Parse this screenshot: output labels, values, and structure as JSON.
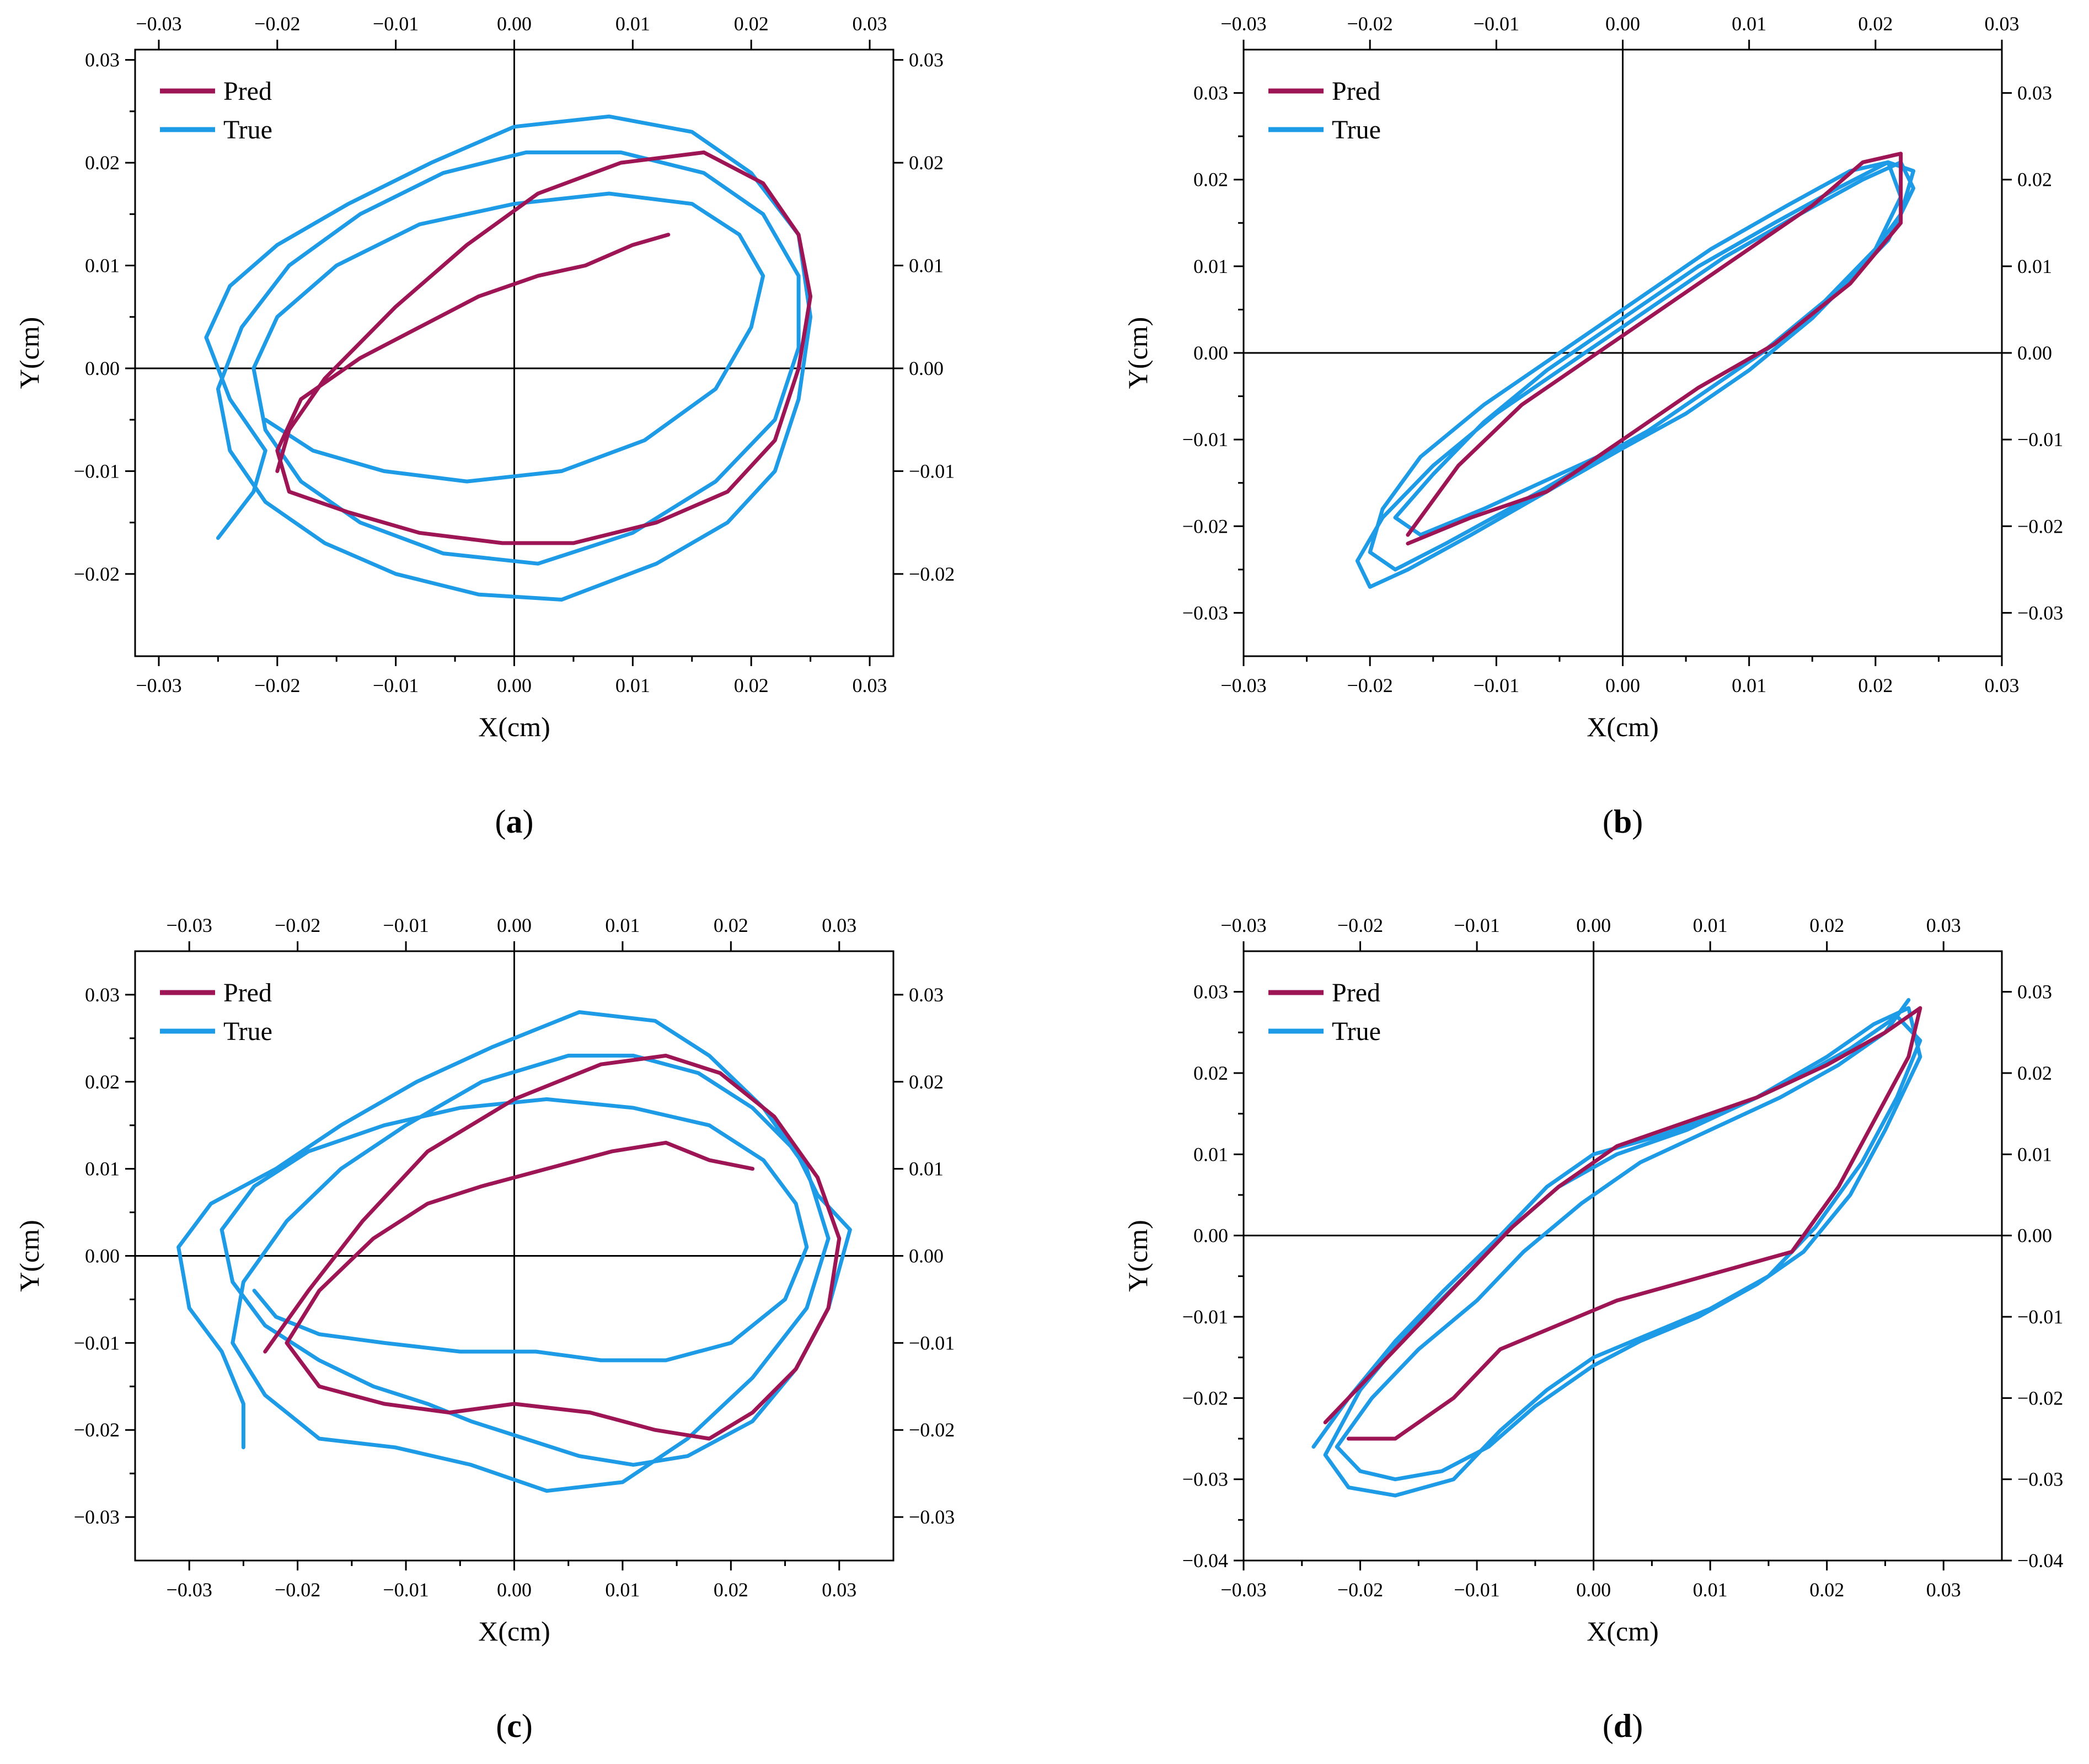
{
  "figure": {
    "panels": [
      "a",
      "b",
      "c",
      "d"
    ]
  },
  "chart_data": [
    {
      "id": "a",
      "panel_label": "(a)",
      "type": "line",
      "xlabel": "X(cm)",
      "ylabel": "Y(cm)",
      "xlim": [
        -0.032,
        0.032
      ],
      "ylim": [
        -0.028,
        0.031
      ],
      "xticks": [
        -0.03,
        -0.02,
        -0.01,
        0.0,
        0.01,
        0.02,
        0.03
      ],
      "yticks": [
        -0.02,
        -0.01,
        0.0,
        0.01,
        0.02,
        0.03
      ],
      "xtick_labels": [
        "−0.03",
        "−0.02",
        "−0.01",
        "0.00",
        "0.01",
        "0.02",
        "0.03"
      ],
      "ytick_labels": [
        "−0.02",
        "−0.01",
        "0.00",
        "0.01",
        "0.02",
        "0.03"
      ],
      "legend": {
        "position": "top-left",
        "entries": [
          "Pred",
          "True"
        ]
      },
      "series": [
        {
          "name": "True",
          "color": "#1e9be6",
          "x": [
            -0.025,
            -0.022,
            -0.021,
            -0.024,
            -0.026,
            -0.024,
            -0.02,
            -0.014,
            -0.007,
            0.0,
            0.008,
            0.015,
            0.02,
            0.024,
            0.025,
            0.024,
            0.022,
            0.018,
            0.012,
            0.004,
            -0.003,
            -0.01,
            -0.016,
            -0.021,
            -0.024,
            -0.025,
            -0.023,
            -0.019,
            -0.013,
            -0.006,
            0.001,
            0.009,
            0.016,
            0.021,
            0.024,
            0.024,
            0.022,
            0.017,
            0.01,
            0.002,
            -0.006,
            -0.013,
            -0.018,
            -0.021,
            -0.022,
            -0.02,
            -0.015,
            -0.008,
            0.0,
            0.008,
            0.015,
            0.019,
            0.021,
            0.02,
            0.017,
            0.011,
            0.004,
            -0.004,
            -0.011,
            -0.017,
            -0.021
          ],
          "y": [
            -0.0165,
            -0.012,
            -0.008,
            -0.003,
            0.003,
            0.008,
            0.012,
            0.016,
            0.02,
            0.0235,
            0.0245,
            0.023,
            0.019,
            0.013,
            0.005,
            -0.003,
            -0.01,
            -0.015,
            -0.019,
            -0.0225,
            -0.022,
            -0.02,
            -0.017,
            -0.013,
            -0.008,
            -0.002,
            0.004,
            0.01,
            0.015,
            0.019,
            0.021,
            0.021,
            0.019,
            0.015,
            0.009,
            0.002,
            -0.005,
            -0.011,
            -0.016,
            -0.019,
            -0.018,
            -0.015,
            -0.011,
            -0.006,
            0.0,
            0.005,
            0.01,
            0.014,
            0.016,
            0.017,
            0.016,
            0.013,
            0.009,
            0.004,
            -0.002,
            -0.007,
            -0.01,
            -0.011,
            -0.01,
            -0.008,
            -0.005
          ]
        },
        {
          "name": "Pred",
          "color": "#9e1556",
          "x": [
            -0.02,
            -0.019,
            -0.016,
            -0.01,
            -0.004,
            0.002,
            0.009,
            0.016,
            0.021,
            0.024,
            0.025,
            0.024,
            0.022,
            0.018,
            0.012,
            0.005,
            -0.001,
            -0.008,
            -0.014,
            -0.019,
            -0.02,
            -0.018,
            -0.013,
            -0.008,
            -0.003,
            0.002,
            0.006,
            0.01,
            0.013
          ],
          "y": [
            -0.01,
            -0.006,
            -0.001,
            0.006,
            0.012,
            0.017,
            0.02,
            0.021,
            0.018,
            0.013,
            0.007,
            0.0,
            -0.007,
            -0.012,
            -0.015,
            -0.017,
            -0.017,
            -0.016,
            -0.014,
            -0.012,
            -0.008,
            -0.003,
            0.001,
            0.004,
            0.007,
            0.009,
            0.01,
            0.012,
            0.013
          ]
        }
      ]
    },
    {
      "id": "b",
      "panel_label": "(b)",
      "type": "line",
      "xlabel": "X(cm)",
      "ylabel": "Y(cm)",
      "xlim": [
        -0.03,
        0.03
      ],
      "ylim": [
        -0.035,
        0.035
      ],
      "xticks": [
        -0.03,
        -0.02,
        -0.01,
        0.0,
        0.01,
        0.02,
        0.03
      ],
      "yticks": [
        -0.03,
        -0.02,
        -0.01,
        0.0,
        0.01,
        0.02,
        0.03
      ],
      "xtick_labels": [
        "−0.03",
        "−0.02",
        "−0.01",
        "0.00",
        "0.01",
        "0.02",
        "0.03"
      ],
      "ytick_labels": [
        "−0.03",
        "−0.02",
        "−0.01",
        "0.00",
        "0.01",
        "0.02",
        "0.03"
      ],
      "legend": {
        "position": "top-left",
        "entries": [
          "Pred",
          "True"
        ]
      },
      "series": [
        {
          "name": "True",
          "color": "#1e9be6",
          "x": [
            -0.018,
            -0.015,
            -0.011,
            -0.006,
            0.0,
            0.006,
            0.012,
            0.017,
            0.021,
            0.023,
            0.022,
            0.019,
            0.015,
            0.01,
            0.005,
            0.0,
            -0.006,
            -0.012,
            -0.017,
            -0.02,
            -0.021,
            -0.019,
            -0.015,
            -0.01,
            -0.004,
            0.002,
            0.008,
            0.014,
            0.019,
            0.022,
            0.023,
            0.021,
            0.017,
            0.012,
            0.007,
            0.002,
            -0.003,
            -0.009,
            -0.014,
            -0.018,
            -0.02,
            -0.019,
            -0.016,
            -0.011,
            -0.005,
            0.001,
            0.007,
            0.013,
            0.018,
            0.021,
            0.022,
            0.02,
            0.016,
            0.011,
            0.006,
            0.001,
            -0.005,
            -0.011,
            -0.016,
            -0.018
          ],
          "y": [
            -0.019,
            -0.014,
            -0.008,
            -0.002,
            0.004,
            0.01,
            0.015,
            0.019,
            0.022,
            0.021,
            0.016,
            0.01,
            0.004,
            -0.002,
            -0.007,
            -0.011,
            -0.016,
            -0.021,
            -0.025,
            -0.027,
            -0.024,
            -0.019,
            -0.013,
            -0.007,
            -0.001,
            0.005,
            0.011,
            0.016,
            0.02,
            0.022,
            0.019,
            0.013,
            0.007,
            0.001,
            -0.004,
            -0.009,
            -0.013,
            -0.018,
            -0.022,
            -0.025,
            -0.023,
            -0.018,
            -0.012,
            -0.006,
            0.0,
            0.006,
            0.012,
            0.017,
            0.021,
            0.022,
            0.018,
            0.012,
            0.006,
            0.0,
            -0.005,
            -0.01,
            -0.014,
            -0.018,
            -0.021,
            -0.019
          ]
        },
        {
          "name": "Pred",
          "color": "#9e1556",
          "x": [
            -0.017,
            -0.012,
            -0.006,
            0.0,
            0.006,
            0.012,
            0.018,
            0.022,
            0.022,
            0.019,
            0.015,
            0.01,
            0.004,
            -0.002,
            -0.008,
            -0.013,
            -0.017
          ],
          "y": [
            -0.022,
            -0.019,
            -0.016,
            -0.01,
            -0.004,
            0.001,
            0.008,
            0.015,
            0.023,
            0.022,
            0.017,
            0.012,
            0.006,
            0.0,
            -0.006,
            -0.013,
            -0.021
          ]
        }
      ]
    },
    {
      "id": "c",
      "panel_label": "(c)",
      "type": "line",
      "xlabel": "X(cm)",
      "ylabel": "Y(cm)",
      "xlim": [
        -0.035,
        0.035
      ],
      "ylim": [
        -0.035,
        0.035
      ],
      "xticks": [
        -0.03,
        -0.02,
        -0.01,
        0.0,
        0.01,
        0.02,
        0.03
      ],
      "yticks": [
        -0.03,
        -0.02,
        -0.01,
        0.0,
        0.01,
        0.02,
        0.03
      ],
      "xtick_labels": [
        "−0.03",
        "−0.02",
        "−0.01",
        "0.00",
        "0.01",
        "0.02",
        "0.03"
      ],
      "ytick_labels": [
        "−0.03",
        "−0.02",
        "−0.01",
        "0.00",
        "0.01",
        "0.02",
        "0.03"
      ],
      "legend": {
        "position": "top-left",
        "entries": [
          "Pred",
          "True"
        ]
      },
      "series": [
        {
          "name": "True",
          "color": "#1e9be6",
          "x": [
            -0.025,
            -0.025,
            -0.027,
            -0.03,
            -0.031,
            -0.028,
            -0.022,
            -0.016,
            -0.009,
            -0.002,
            0.006,
            0.013,
            0.018,
            0.023,
            0.027,
            0.029,
            0.027,
            0.022,
            0.016,
            0.01,
            0.003,
            -0.004,
            -0.011,
            -0.018,
            -0.023,
            -0.026,
            -0.025,
            -0.021,
            -0.016,
            -0.01,
            -0.003,
            0.005,
            0.011,
            0.017,
            0.022,
            0.026,
            0.028,
            0.031,
            0.029,
            0.026,
            0.022,
            0.016,
            0.011,
            0.006,
            0.001,
            -0.004,
            -0.008,
            -0.013,
            -0.018,
            -0.023,
            -0.026,
            -0.027,
            -0.024,
            -0.019,
            -0.012,
            -0.005,
            0.003,
            0.011,
            0.018,
            0.023,
            0.026,
            0.027,
            0.025,
            0.02,
            0.014,
            0.008,
            0.002,
            -0.005,
            -0.012,
            -0.018,
            -0.022,
            -0.024
          ],
          "y": [
            -0.022,
            -0.017,
            -0.011,
            -0.006,
            0.001,
            0.006,
            0.01,
            0.015,
            0.02,
            0.024,
            0.028,
            0.027,
            0.023,
            0.017,
            0.01,
            0.002,
            -0.006,
            -0.014,
            -0.021,
            -0.026,
            -0.027,
            -0.024,
            -0.022,
            -0.021,
            -0.016,
            -0.01,
            -0.003,
            0.004,
            0.01,
            0.015,
            0.02,
            0.023,
            0.023,
            0.021,
            0.017,
            0.012,
            0.007,
            0.003,
            -0.006,
            -0.013,
            -0.019,
            -0.023,
            -0.024,
            -0.023,
            -0.021,
            -0.019,
            -0.017,
            -0.015,
            -0.012,
            -0.008,
            -0.003,
            0.003,
            0.008,
            0.012,
            0.015,
            0.017,
            0.018,
            0.017,
            0.015,
            0.011,
            0.006,
            0.001,
            -0.005,
            -0.01,
            -0.012,
            -0.012,
            -0.011,
            -0.011,
            -0.01,
            -0.009,
            -0.007,
            -0.004
          ]
        },
        {
          "name": "Pred",
          "color": "#9e1556",
          "x": [
            -0.023,
            -0.019,
            -0.014,
            -0.008,
            0.0,
            0.008,
            0.014,
            0.019,
            0.024,
            0.028,
            0.03,
            0.029,
            0.026,
            0.022,
            0.018,
            0.013,
            0.007,
            0.0,
            -0.006,
            -0.012,
            -0.018,
            -0.021,
            -0.018,
            -0.013,
            -0.008,
            -0.003,
            0.003,
            0.009,
            0.014,
            0.018,
            0.022
          ],
          "y": [
            -0.011,
            -0.004,
            0.004,
            0.012,
            0.018,
            0.022,
            0.023,
            0.021,
            0.016,
            0.009,
            0.002,
            -0.006,
            -0.013,
            -0.018,
            -0.021,
            -0.02,
            -0.018,
            -0.017,
            -0.018,
            -0.017,
            -0.015,
            -0.01,
            -0.004,
            0.002,
            0.006,
            0.008,
            0.01,
            0.012,
            0.013,
            0.011,
            0.01
          ]
        }
      ]
    },
    {
      "id": "d",
      "panel_label": "(d)",
      "type": "line",
      "xlabel": "X(cm)",
      "ylabel": "Y(cm)",
      "xlim": [
        -0.03,
        0.035
      ],
      "ylim": [
        -0.04,
        0.035
      ],
      "xticks": [
        -0.03,
        -0.02,
        -0.01,
        0.0,
        0.01,
        0.02,
        0.03
      ],
      "yticks": [
        -0.04,
        -0.03,
        -0.02,
        -0.01,
        0.0,
        0.01,
        0.02,
        0.03
      ],
      "xtick_labels": [
        "−0.03",
        "−0.02",
        "−0.01",
        "0.00",
        "0.01",
        "0.02",
        "0.03"
      ],
      "ytick_labels": [
        "−0.04",
        "−0.03",
        "−0.02",
        "−0.01",
        "0.00",
        "0.01",
        "0.02",
        "0.03"
      ],
      "legend": {
        "position": "top-left",
        "entries": [
          "Pred",
          "True"
        ]
      },
      "series": [
        {
          "name": "True",
          "color": "#1e9be6",
          "x": [
            -0.024,
            -0.021,
            -0.017,
            -0.013,
            -0.008,
            -0.004,
            0.0,
            0.005,
            0.011,
            0.017,
            0.022,
            0.026,
            0.028,
            0.026,
            0.023,
            0.019,
            0.015,
            0.01,
            0.005,
            0.0,
            -0.004,
            -0.008,
            -0.012,
            -0.017,
            -0.021,
            -0.023,
            -0.02,
            -0.016,
            -0.011,
            -0.007,
            -0.003,
            0.002,
            0.008,
            0.014,
            0.02,
            0.024,
            0.027,
            0.028,
            0.025,
            0.022,
            0.018,
            0.014,
            0.009,
            0.004,
            0.0,
            -0.005,
            -0.009,
            -0.013,
            -0.017,
            -0.02,
            -0.022,
            -0.019,
            -0.015,
            -0.01,
            -0.006,
            -0.001,
            0.004,
            0.01,
            0.016,
            0.021,
            0.025,
            0.027
          ],
          "y": [
            -0.026,
            -0.02,
            -0.013,
            -0.007,
            0.0,
            0.006,
            0.01,
            0.012,
            0.015,
            0.019,
            0.023,
            0.027,
            0.024,
            0.017,
            0.009,
            0.001,
            -0.005,
            -0.009,
            -0.012,
            -0.015,
            -0.019,
            -0.024,
            -0.03,
            -0.032,
            -0.031,
            -0.027,
            -0.019,
            -0.012,
            -0.005,
            0.001,
            0.006,
            0.01,
            0.013,
            0.017,
            0.022,
            0.026,
            0.028,
            0.022,
            0.013,
            0.005,
            -0.002,
            -0.006,
            -0.01,
            -0.013,
            -0.016,
            -0.021,
            -0.026,
            -0.029,
            -0.03,
            -0.029,
            -0.026,
            -0.02,
            -0.014,
            -0.008,
            -0.002,
            0.004,
            0.009,
            0.013,
            0.017,
            0.021,
            0.025,
            0.029
          ]
        },
        {
          "name": "Pred",
          "color": "#9e1556",
          "x": [
            -0.023,
            -0.019,
            -0.015,
            -0.011,
            -0.007,
            -0.003,
            0.002,
            0.008,
            0.014,
            0.02,
            0.025,
            0.028,
            0.027,
            0.024,
            0.021,
            0.017,
            0.012,
            0.007,
            0.002,
            -0.003,
            -0.008,
            -0.012,
            -0.017,
            -0.021
          ],
          "y": [
            -0.023,
            -0.017,
            -0.011,
            -0.005,
            0.001,
            0.006,
            0.011,
            0.014,
            0.017,
            0.021,
            0.025,
            0.028,
            0.022,
            0.014,
            0.006,
            -0.002,
            -0.004,
            -0.006,
            -0.008,
            -0.011,
            -0.014,
            -0.02,
            -0.025,
            -0.025
          ]
        }
      ]
    }
  ]
}
